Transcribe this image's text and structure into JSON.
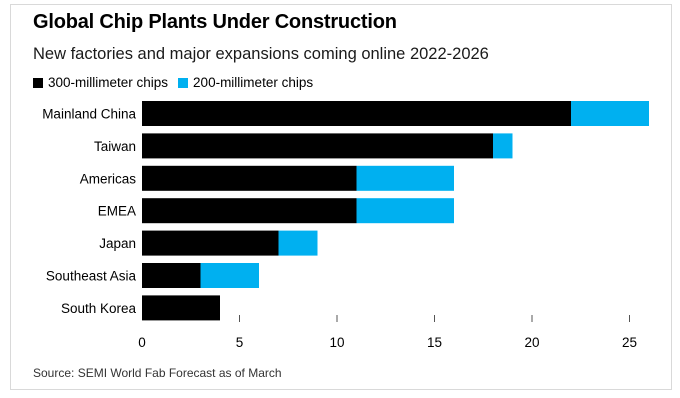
{
  "colors": {
    "series_300": "#000000",
    "series_200": "#00b0f0",
    "tick": "#555555"
  },
  "chart_data": {
    "type": "bar",
    "orientation": "horizontal",
    "stacked": true,
    "title": "Global Chip Plants Under Construction",
    "subtitle": "New factories and major expansions coming online 2022-2026",
    "source": "Source: SEMI World Fab Forecast as of March",
    "legend_position": "top-left",
    "grid": false,
    "categories": [
      "Mainland China",
      "Taiwan",
      "Americas",
      "EMEA",
      "Japan",
      "Southeast Asia",
      "South Korea"
    ],
    "series": [
      {
        "name": "300-millimeter chips",
        "color": "#000000",
        "values": [
          22,
          18,
          11,
          11,
          7,
          3,
          4
        ]
      },
      {
        "name": "200-millimeter chips",
        "color": "#00b0f0",
        "values": [
          4,
          1,
          5,
          5,
          2,
          3,
          0
        ]
      }
    ],
    "xlim": [
      0,
      25
    ],
    "xticks": [
      0,
      5,
      10,
      15,
      20,
      25
    ]
  }
}
